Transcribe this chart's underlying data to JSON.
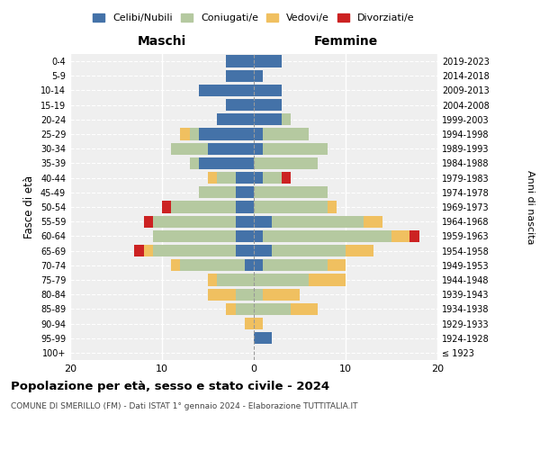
{
  "age_groups": [
    "100+",
    "95-99",
    "90-94",
    "85-89",
    "80-84",
    "75-79",
    "70-74",
    "65-69",
    "60-64",
    "55-59",
    "50-54",
    "45-49",
    "40-44",
    "35-39",
    "30-34",
    "25-29",
    "20-24",
    "15-19",
    "10-14",
    "5-9",
    "0-4"
  ],
  "birth_years": [
    "≤ 1923",
    "1924-1928",
    "1929-1933",
    "1934-1938",
    "1939-1943",
    "1944-1948",
    "1949-1953",
    "1954-1958",
    "1959-1963",
    "1964-1968",
    "1969-1973",
    "1974-1978",
    "1979-1983",
    "1984-1988",
    "1989-1993",
    "1994-1998",
    "1999-2003",
    "2004-2008",
    "2009-2013",
    "2014-2018",
    "2019-2023"
  ],
  "colors": {
    "celibi": "#4472a8",
    "coniugati": "#b5c9a0",
    "vedovi": "#f0c060",
    "divorziati": "#cc2222"
  },
  "maschi": {
    "celibi": [
      0,
      0,
      0,
      0,
      0,
      0,
      1,
      2,
      2,
      2,
      2,
      2,
      2,
      6,
      5,
      6,
      4,
      3,
      6,
      3,
      3
    ],
    "coniugati": [
      0,
      0,
      0,
      2,
      2,
      4,
      7,
      9,
      9,
      9,
      7,
      4,
      2,
      1,
      4,
      1,
      0,
      0,
      0,
      0,
      0
    ],
    "vedovi": [
      0,
      0,
      1,
      1,
      3,
      1,
      1,
      1,
      0,
      0,
      0,
      0,
      1,
      0,
      0,
      1,
      0,
      0,
      0,
      0,
      0
    ],
    "divorziati": [
      0,
      0,
      0,
      0,
      0,
      0,
      0,
      1,
      0,
      1,
      1,
      0,
      0,
      0,
      0,
      0,
      0,
      0,
      0,
      0,
      0
    ]
  },
  "femmine": {
    "celibi": [
      0,
      2,
      0,
      0,
      0,
      0,
      1,
      2,
      1,
      2,
      0,
      0,
      1,
      0,
      1,
      1,
      3,
      3,
      3,
      1,
      3
    ],
    "coniugati": [
      0,
      0,
      0,
      4,
      1,
      6,
      7,
      8,
      14,
      10,
      8,
      8,
      2,
      7,
      7,
      5,
      1,
      0,
      0,
      0,
      0
    ],
    "vedovi": [
      0,
      0,
      1,
      3,
      4,
      4,
      2,
      3,
      2,
      2,
      1,
      0,
      0,
      0,
      0,
      0,
      0,
      0,
      0,
      0,
      0
    ],
    "divorziati": [
      0,
      0,
      0,
      0,
      0,
      0,
      0,
      0,
      1,
      0,
      0,
      0,
      1,
      0,
      0,
      0,
      0,
      0,
      0,
      0,
      0
    ]
  },
  "xlim": 20,
  "title": "Popolazione per età, sesso e stato civile - 2024",
  "subtitle": "COMUNE DI SMERILLO (FM) - Dati ISTAT 1° gennaio 2024 - Elaborazione TUTTITALIA.IT",
  "ylabel_left": "Fasce di età",
  "ylabel_right": "Anni di nascita",
  "xlabel_maschi": "Maschi",
  "xlabel_femmine": "Femmine",
  "bg_color": "#efefef"
}
